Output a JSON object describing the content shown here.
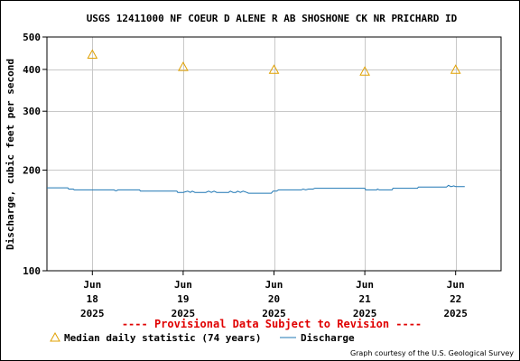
{
  "chart_data": {
    "type": "line",
    "title": "USGS 12411000 NF COEUR D ALENE R AB SHOSHONE CK NR PRICHARD ID",
    "ylabel": "Discharge, cubic feet per second",
    "xlabel": "",
    "y_scale": "log",
    "ylim": [
      100,
      500
    ],
    "y_ticks": [
      {
        "value": 100,
        "label": "100"
      },
      {
        "value": 200,
        "label": "200"
      },
      {
        "value": 300,
        "label": "300"
      },
      {
        "value": 400,
        "label": "400"
      },
      {
        "value": 500,
        "label": "500"
      }
    ],
    "xlim_days": [
      17.5,
      22.5
    ],
    "x_ticks": [
      {
        "day": 18,
        "lines": [
          "Jun",
          "18",
          "2025"
        ]
      },
      {
        "day": 19,
        "lines": [
          "Jun",
          "19",
          "2025"
        ]
      },
      {
        "day": 20,
        "lines": [
          "Jun",
          "20",
          "2025"
        ]
      },
      {
        "day": 21,
        "lines": [
          "Jun",
          "21",
          "2025"
        ]
      },
      {
        "day": 22,
        "lines": [
          "Jun",
          "22",
          "2025"
        ]
      }
    ],
    "grid": true,
    "series": [
      {
        "name": "Median daily statistic (74 years)",
        "kind": "marker-triangle",
        "color": "#e0a000",
        "points": [
          [
            18,
            443
          ],
          [
            19,
            407
          ],
          [
            20,
            399
          ],
          [
            21,
            394
          ],
          [
            22,
            399
          ]
        ]
      },
      {
        "name": "Discharge",
        "kind": "line",
        "color": "#1f77b4",
        "points": [
          [
            17.5,
            177
          ],
          [
            17.73,
            177
          ],
          [
            17.74,
            175.5
          ],
          [
            17.79,
            175.5
          ],
          [
            17.8,
            174.5
          ],
          [
            18.24,
            174.5
          ],
          [
            18.25,
            173.5
          ],
          [
            18.27,
            173.5
          ],
          [
            18.28,
            174.5
          ],
          [
            18.4,
            174.5
          ],
          [
            18.52,
            174.5
          ],
          [
            18.53,
            173
          ],
          [
            18.93,
            173
          ],
          [
            18.94,
            171.5
          ],
          [
            19.0,
            171.5
          ],
          [
            19.05,
            173
          ],
          [
            19.08,
            171.5
          ],
          [
            19.1,
            173
          ],
          [
            19.13,
            171.5
          ],
          [
            19.25,
            171.5
          ],
          [
            19.28,
            173
          ],
          [
            19.31,
            171.5
          ],
          [
            19.34,
            173
          ],
          [
            19.37,
            171.5
          ],
          [
            19.5,
            171.5
          ],
          [
            19.52,
            173
          ],
          [
            19.55,
            171.5
          ],
          [
            19.58,
            171.5
          ],
          [
            19.6,
            173
          ],
          [
            19.63,
            171.5
          ],
          [
            19.66,
            173
          ],
          [
            19.7,
            171.5
          ],
          [
            19.72,
            170.5
          ],
          [
            19.97,
            170.5
          ],
          [
            19.99,
            173
          ],
          [
            20.03,
            173
          ],
          [
            20.05,
            174.5
          ],
          [
            20.3,
            174.5
          ],
          [
            20.32,
            175.5
          ],
          [
            20.35,
            174.5
          ],
          [
            20.38,
            175.5
          ],
          [
            20.43,
            175.5
          ],
          [
            20.45,
            176.5
          ],
          [
            21.0,
            176.5
          ],
          [
            21.01,
            174.5
          ],
          [
            21.13,
            174.5
          ],
          [
            21.14,
            175.5
          ],
          [
            21.16,
            174.5
          ],
          [
            21.3,
            174.5
          ],
          [
            21.31,
            176.5
          ],
          [
            21.58,
            176.5
          ],
          [
            21.59,
            178
          ],
          [
            21.9,
            178
          ],
          [
            21.92,
            180
          ],
          [
            21.95,
            178.5
          ],
          [
            21.98,
            179.5
          ],
          [
            22.0,
            178.5
          ],
          [
            22.1,
            178.5
          ]
        ]
      }
    ],
    "annotation": "---- Provisional Data Subject to Revision ----",
    "credit": "Graph courtesy of the U.S. Geological Survey"
  },
  "colors": {
    "grid": "#c8c8c8",
    "provisional": "#e00000",
    "median_marker": "#e0a000",
    "discharge_line": "#1f77b4"
  }
}
